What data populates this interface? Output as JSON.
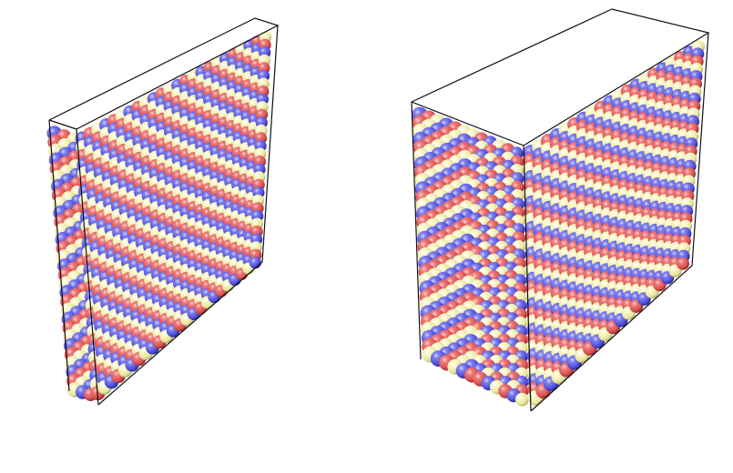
{
  "figure": {
    "panels": [
      {
        "id": "left-slab",
        "pattern_step": 3
      },
      {
        "id": "right-slab",
        "pattern_step": 3
      }
    ],
    "colors": {
      "background": "#ffffff",
      "box_edge": "#111111",
      "atom_blue": "#5a5ae6",
      "atom_red": "#e05a5a",
      "atom_yellow": "#f2f0a8"
    }
  }
}
